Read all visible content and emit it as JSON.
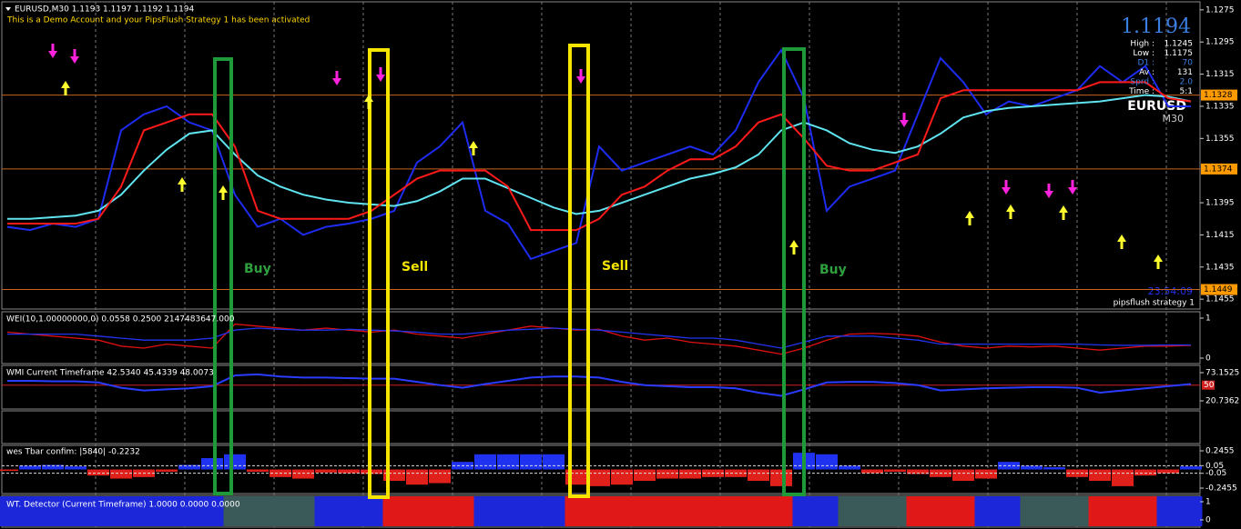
{
  "header": {
    "symbol_line": "EURUSD,M30  1.1193 1.1197 1.1192 1.1194",
    "notice": "This is a Demo Account and your PipsFlush Strategy 1 has been activated"
  },
  "info": {
    "price": 1.1194,
    "rows": [
      {
        "label": "High :",
        "value": 1.1245
      },
      {
        "label": "Low :",
        "value": 1.1175
      },
      {
        "label": "D1 :",
        "value": 70
      },
      {
        "label": "Av :",
        "value": 131
      },
      {
        "label": "Sprd :",
        "value": "2.0"
      },
      {
        "label": "Time :",
        "value": "5:1"
      }
    ],
    "symbol": "EURUSD",
    "timeframe": "M30"
  },
  "clock": "23:54:09",
  "strategy": "pipsflush strategy 1",
  "signals": [
    "Buy",
    "Sell",
    "Sell",
    "Buy"
  ],
  "price_chart": {
    "ylim": [
      1.127,
      1.146
    ],
    "yticks": [
      1.1455,
      1.1435,
      1.1415,
      1.1395,
      1.1355,
      1.1335,
      1.1315,
      1.1295,
      1.1275
    ],
    "levels": [
      1.1449,
      1.1374,
      1.1328
    ],
    "series": [
      {
        "color": "#1d2cf0",
        "values": [
          1.141,
          1.1412,
          1.1408,
          1.141,
          1.1405,
          1.135,
          1.134,
          1.1335,
          1.1345,
          1.135,
          1.139,
          1.141,
          1.1405,
          1.1415,
          1.141,
          1.1408,
          1.1405,
          1.14,
          1.137,
          1.136,
          1.1345,
          1.14,
          1.1408,
          1.143,
          1.1425,
          1.142,
          1.136,
          1.1375,
          1.137,
          1.1365,
          1.136,
          1.1365,
          1.135,
          1.132,
          1.13,
          1.133,
          1.14,
          1.1385,
          1.138,
          1.1375,
          1.134,
          1.1305,
          1.132,
          1.134,
          1.1332,
          1.1335,
          1.133,
          1.1325,
          1.131,
          1.132,
          1.131,
          1.1335,
          1.1335
        ]
      },
      {
        "color": "#5fe3ef",
        "values": [
          1.1405,
          1.1405,
          1.1404,
          1.1403,
          1.14,
          1.139,
          1.1375,
          1.1362,
          1.1352,
          1.135,
          1.1365,
          1.1378,
          1.1385,
          1.139,
          1.1393,
          1.1395,
          1.1396,
          1.1397,
          1.1394,
          1.1388,
          1.138,
          1.138,
          1.1386,
          1.1392,
          1.1398,
          1.1402,
          1.14,
          1.1395,
          1.139,
          1.1385,
          1.138,
          1.1377,
          1.1373,
          1.1365,
          1.135,
          1.1345,
          1.135,
          1.1358,
          1.1362,
          1.1364,
          1.136,
          1.1352,
          1.1342,
          1.1338,
          1.1336,
          1.1335,
          1.1334,
          1.1333,
          1.1332,
          1.133,
          1.1328,
          1.1329,
          1.1332
        ]
      },
      {
        "color": "#ff1a1a",
        "values": [
          1.1408,
          1.1408,
          1.1408,
          1.1408,
          1.1405,
          1.1385,
          1.135,
          1.1345,
          1.134,
          1.134,
          1.136,
          1.14,
          1.1405,
          1.1405,
          1.1405,
          1.1405,
          1.14,
          1.139,
          1.138,
          1.1375,
          1.1375,
          1.1375,
          1.1385,
          1.1412,
          1.1412,
          1.1412,
          1.1405,
          1.139,
          1.1385,
          1.1375,
          1.1368,
          1.1368,
          1.136,
          1.1345,
          1.134,
          1.1355,
          1.1372,
          1.1375,
          1.1375,
          1.137,
          1.1365,
          1.133,
          1.1325,
          1.1325,
          1.1325,
          1.1325,
          1.1325,
          1.1325,
          1.132,
          1.132,
          1.132,
          1.133,
          1.1332
        ]
      }
    ]
  },
  "wei": {
    "title": "WEI(10,1.00000000,0) 0.0558 0.2500 2147483647.000",
    "ylim": [
      0,
      1
    ],
    "yticks": [
      1,
      0
    ],
    "series": [
      {
        "color": "#e01010",
        "values": [
          0.65,
          0.6,
          0.55,
          0.5,
          0.45,
          0.3,
          0.25,
          0.35,
          0.3,
          0.25,
          0.85,
          0.8,
          0.75,
          0.7,
          0.75,
          0.7,
          0.65,
          0.7,
          0.6,
          0.55,
          0.5,
          0.6,
          0.7,
          0.8,
          0.75,
          0.7,
          0.72,
          0.55,
          0.45,
          0.5,
          0.4,
          0.35,
          0.3,
          0.2,
          0.1,
          0.25,
          0.45,
          0.6,
          0.62,
          0.6,
          0.55,
          0.4,
          0.3,
          0.25,
          0.3,
          0.28,
          0.3,
          0.25,
          0.2,
          0.25,
          0.3,
          0.3,
          0.32
        ]
      },
      {
        "color": "#2233ee",
        "values": [
          0.6,
          0.6,
          0.6,
          0.6,
          0.55,
          0.5,
          0.45,
          0.45,
          0.45,
          0.5,
          0.7,
          0.75,
          0.72,
          0.7,
          0.7,
          0.72,
          0.7,
          0.68,
          0.65,
          0.6,
          0.6,
          0.65,
          0.7,
          0.72,
          0.75,
          0.72,
          0.7,
          0.65,
          0.6,
          0.55,
          0.5,
          0.5,
          0.45,
          0.35,
          0.25,
          0.4,
          0.55,
          0.55,
          0.55,
          0.5,
          0.45,
          0.35,
          0.35,
          0.35,
          0.35,
          0.35,
          0.35,
          0.35,
          0.33,
          0.32,
          0.32,
          0.33,
          0.33
        ]
      }
    ]
  },
  "wmi": {
    "title": "WMI Current Timeframe 42.5340 45.4339 48.0073",
    "ylim": [
      20.7362,
      73.1525
    ],
    "yticks": [
      73.1525,
      20.7362
    ],
    "level": 50,
    "series": [
      {
        "color": "#2a3cff",
        "values": [
          58,
          58,
          57,
          57,
          55,
          45,
          40,
          42,
          44,
          48,
          68,
          70,
          66,
          64,
          64,
          63,
          62,
          62,
          56,
          50,
          45,
          52,
          58,
          64,
          66,
          66,
          64,
          56,
          50,
          48,
          46,
          46,
          44,
          36,
          30,
          42,
          55,
          56,
          56,
          54,
          50,
          40,
          42,
          44,
          45,
          46,
          46,
          45,
          36,
          40,
          44,
          48,
          52
        ]
      }
    ]
  },
  "tbar": {
    "title": "wes Tbar confim: |5840|  -0.2232",
    "ylim": [
      -0.2455,
      0.2455
    ],
    "yticks": [
      0.2455,
      0.05,
      -0.05,
      -0.2455
    ],
    "up_color": "#1e32f0",
    "down_color": "#e0201a",
    "values": [
      -0.02,
      0.05,
      0.06,
      0.04,
      -0.08,
      -0.12,
      -0.1,
      -0.03,
      0.06,
      0.15,
      0.2,
      -0.03,
      -0.1,
      -0.12,
      -0.04,
      -0.05,
      -0.06,
      -0.15,
      -0.2,
      -0.18,
      0.1,
      0.2,
      0.2,
      0.2,
      0.2,
      -0.2,
      -0.22,
      -0.2,
      -0.15,
      -0.12,
      -0.12,
      -0.1,
      -0.1,
      -0.15,
      -0.22,
      0.22,
      0.2,
      0.05,
      -0.05,
      -0.03,
      -0.06,
      -0.1,
      -0.15,
      -0.12,
      0.1,
      0.05,
      0.03,
      -0.1,
      -0.15,
      -0.22,
      -0.08,
      -0.05,
      0.04
    ]
  },
  "wt": {
    "title": "WT. Detector (Current Timeframe) 1.0000 0.0000 0.0000",
    "yticks": [
      1,
      0
    ],
    "colors": {
      "b": "#1b27d8",
      "g": "#3a5a5a",
      "r": "#e01818"
    },
    "states": [
      "b",
      "b",
      "b",
      "b",
      "b",
      "b",
      "b",
      "b",
      "b",
      "b",
      "g",
      "g",
      "g",
      "g",
      "b",
      "b",
      "b",
      "r",
      "r",
      "r",
      "r",
      "b",
      "b",
      "b",
      "b",
      "r",
      "r",
      "r",
      "r",
      "r",
      "r",
      "r",
      "r",
      "r",
      "r",
      "b",
      "b",
      "g",
      "g",
      "g",
      "r",
      "r",
      "r",
      "b",
      "b",
      "g",
      "g",
      "g",
      "r",
      "r",
      "r",
      "b",
      "b"
    ]
  }
}
